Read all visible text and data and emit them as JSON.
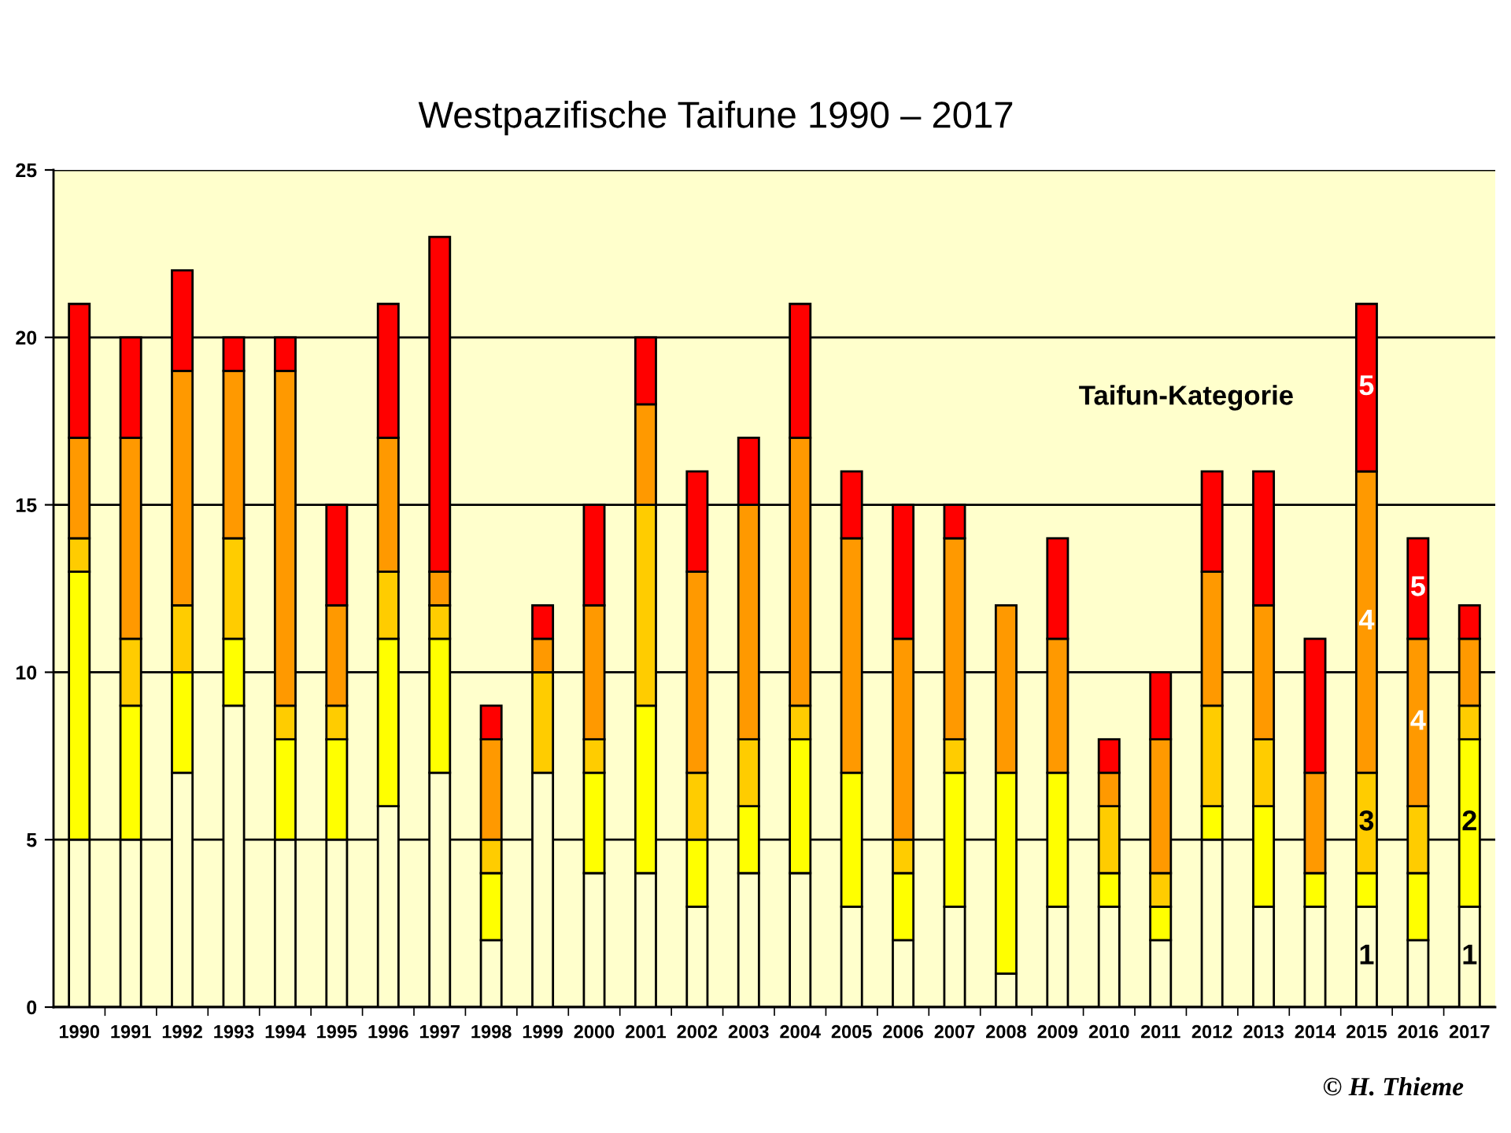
{
  "chart_data": {
    "type": "bar",
    "title": "Westpazifische Taifune 1990 – 2017",
    "legend_title": "Taifun-Kategorie",
    "annotations": [
      "© H. Thieme"
    ],
    "categories": [
      "1990",
      "1991",
      "1992",
      "1993",
      "1994",
      "1995",
      "1996",
      "1997",
      "1998",
      "1999",
      "2000",
      "2001",
      "2002",
      "2003",
      "2004",
      "2005",
      "2006",
      "2007",
      "2008",
      "2009",
      "2010",
      "2011",
      "2012",
      "2013",
      "2014",
      "2015",
      "2016",
      "2017"
    ],
    "stacked": true,
    "ylim": [
      0,
      25
    ],
    "yticks": [
      0,
      5,
      10,
      15,
      20,
      25
    ],
    "grid": "y",
    "legend": false,
    "series": [
      {
        "name": "1",
        "color": "#ffffcc",
        "values": [
          5,
          5,
          7,
          9,
          5,
          5,
          6,
          7,
          2,
          7,
          4,
          4,
          3,
          4,
          4,
          3,
          2,
          3,
          1,
          3,
          3,
          2,
          5,
          3,
          3,
          3,
          2,
          3
        ]
      },
      {
        "name": "2",
        "color": "#ffff00",
        "values": [
          8,
          4,
          3,
          2,
          3,
          3,
          5,
          4,
          2,
          0,
          3,
          5,
          2,
          2,
          4,
          4,
          2,
          4,
          6,
          4,
          1,
          1,
          1,
          3,
          1,
          1,
          2,
          5
        ]
      },
      {
        "name": "3",
        "color": "#ffcc00",
        "values": [
          1,
          2,
          2,
          3,
          1,
          1,
          2,
          1,
          1,
          3,
          1,
          6,
          2,
          2,
          1,
          0,
          1,
          1,
          0,
          0,
          2,
          1,
          3,
          2,
          0,
          3,
          2,
          1
        ]
      },
      {
        "name": "4",
        "color": "#ff9900",
        "values": [
          3,
          6,
          7,
          5,
          10,
          3,
          4,
          1,
          3,
          1,
          4,
          3,
          6,
          7,
          8,
          7,
          6,
          6,
          5,
          4,
          1,
          4,
          4,
          4,
          3,
          9,
          5,
          2
        ]
      },
      {
        "name": "5",
        "color": "#ff0000",
        "values": [
          4,
          3,
          3,
          1,
          1,
          3,
          4,
          10,
          1,
          1,
          3,
          2,
          3,
          2,
          4,
          2,
          4,
          1,
          0,
          3,
          1,
          2,
          3,
          4,
          4,
          5,
          3,
          1
        ]
      }
    ]
  }
}
